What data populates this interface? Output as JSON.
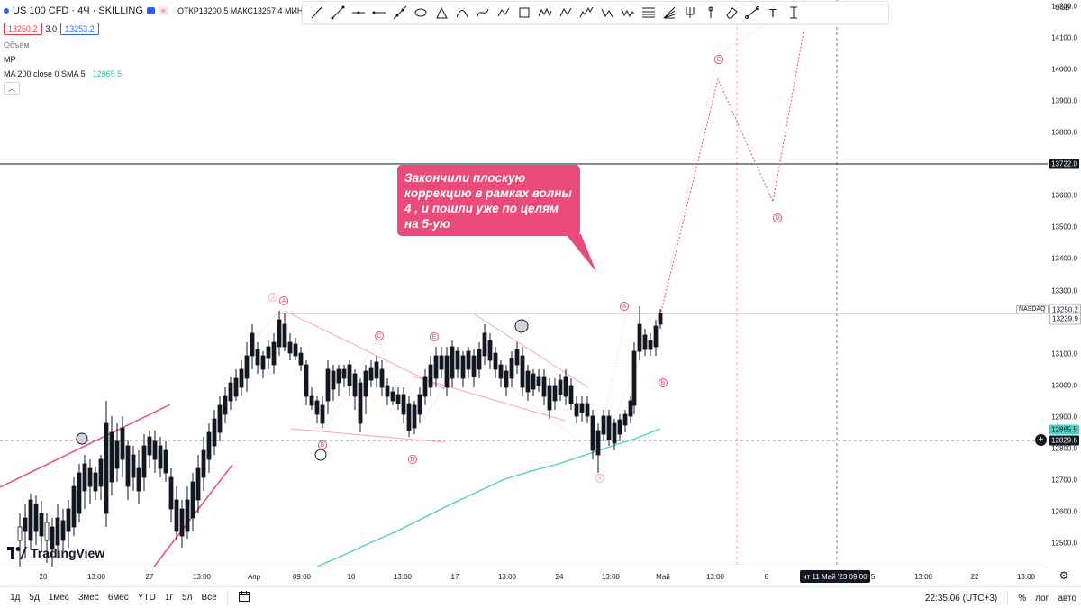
{
  "legend": {
    "symbol": "US 100 CFD · 4Ч · SKILLING",
    "change_badge": "≈",
    "ohlc": "ОТКР13200.5 МАКС13257.4 МИН1",
    "sell_price": "13250.2",
    "spread": "3.0",
    "buy_price": "13253.2",
    "volume_label": "Объём",
    "mp_label": "MP",
    "ma_label": "MA 200 close 0 SMA 5",
    "ma_value": "12865.5",
    "collapse_icon": "chevron-up-icon"
  },
  "toolbar": {
    "tools": [
      "cursor-pen-icon",
      "trend-line-icon",
      "horizontal-line-icon",
      "ray-icon",
      "extended-line-icon",
      "ellipse-icon",
      "triangle-icon",
      "arc-icon",
      "curve-icon",
      "polyline-icon",
      "rectangle-icon",
      "pattern-icon",
      "abcd-icon",
      "wave-12345-icon",
      "wave-abc-icon",
      "wave-abcde-icon",
      "fib-icon",
      "fib-fan-icon",
      "pitchfork-icon",
      "pin-icon",
      "eraser-icon",
      "path-icon",
      "text-icon",
      "cursor-text-icon"
    ],
    "wave_labels": {
      "impulse": "1 5",
      "abc": "A C",
      "abcde": "A E"
    },
    "text_tool": "T"
  },
  "callout": {
    "text": "Закончили плоскую коррекцию в рамках волны 4 , и пошли уже по целям на 5-ую"
  },
  "y_axis": {
    "currency": "USD",
    "ticks": [
      "14200.0",
      "14100.0",
      "14000.0",
      "13900.0",
      "13800.0",
      "13600.0",
      "13500.0",
      "13400.0",
      "13300.0",
      "13100.0",
      "13000.0",
      "12900.0",
      "12800.0",
      "12700.0",
      "12600.0",
      "12500.0"
    ],
    "labels": {
      "hline": "13722.0",
      "last": "13250.2",
      "last2": "13239.9",
      "ma": "12865.5",
      "cursor": "12829.6"
    },
    "nasdaq_tag": "NASDAQ"
  },
  "x_axis": {
    "ticks": [
      "20",
      "13:00",
      "27",
      "13:00",
      "Апр",
      "09:00",
      "10",
      "13:00",
      "17",
      "13:00",
      "24",
      "13:00",
      "Май",
      "13:00",
      "8",
      "13:00",
      "22",
      "13:00"
    ],
    "cursor_label": "чт 11 Май '23   09:00",
    "cursor_suffix": "5"
  },
  "waves": {
    "w3": "3",
    "w4": "4",
    "A1": "A",
    "B1": "B",
    "C1": "C",
    "D1": "D",
    "E1": "E",
    "A2": "A",
    "B2": "B",
    "C2": "C",
    "D2": "D"
  },
  "logo": {
    "text": "TradingView"
  },
  "bottom_bar": {
    "ranges": [
      "1д",
      "5д",
      "1мес",
      "3мес",
      "6мес",
      "YTD",
      "1г",
      "5л",
      "Все"
    ],
    "compare_icon": "calendar-range-icon",
    "clock": "22:35:06 (UTC+3)",
    "percent": "%",
    "log": "лог",
    "auto": "авто"
  },
  "colors": {
    "candle": "#131722",
    "pink": "#ea4b7a",
    "pink_light": "#f4a6bd",
    "ma": "#4dd0c4",
    "accent": "#2962ff"
  },
  "chart_data": {
    "type": "candlestick",
    "title": "US 100 CFD · 4Ч · SKILLING",
    "ylim": [
      12460,
      14260
    ],
    "series": [
      {
        "name": "MA 200 close 0 SMA 5",
        "values": [
          12450,
          12520,
          12600,
          12680,
          12740,
          12790,
          12830,
          12865
        ]
      }
    ],
    "horizontal_lines": [
      13722.0,
      13250.2
    ],
    "last_price": 13250.2
  }
}
